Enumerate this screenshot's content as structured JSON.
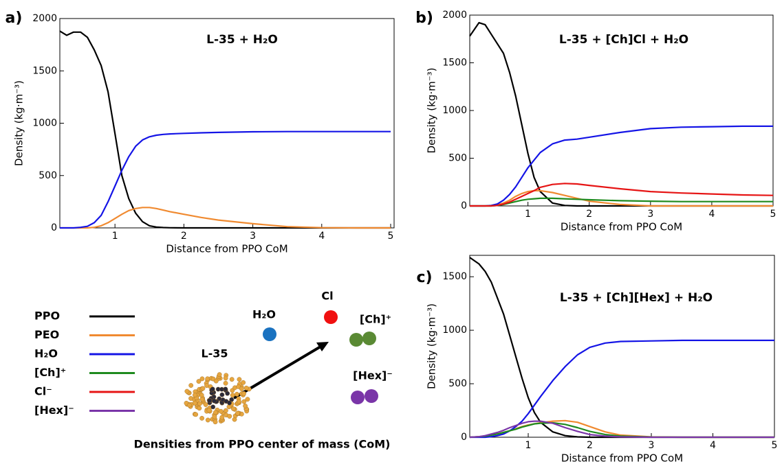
{
  "chart_data": [
    {
      "type": "line",
      "panel_label": "a)",
      "title": "L-35 + H₂O",
      "xlabel": "Distance from PPO CoM",
      "ylabel": "Density (kg·m⁻³)",
      "xlim": [
        0.2,
        5.05
      ],
      "xticks": [
        1,
        2,
        3,
        4,
        5
      ],
      "ylim": [
        0,
        2000
      ],
      "yticks": [
        0,
        500,
        1000,
        1500,
        2000
      ],
      "x": [
        0.2,
        0.3,
        0.4,
        0.5,
        0.6,
        0.7,
        0.8,
        0.9,
        1.0,
        1.1,
        1.2,
        1.3,
        1.4,
        1.5,
        1.6,
        1.7,
        1.8,
        2.0,
        2.25,
        2.5,
        3,
        3.5,
        4,
        4.5,
        5
      ],
      "series": [
        {
          "color": "#000000",
          "values": [
            1880,
            1840,
            1870,
            1870,
            1820,
            1700,
            1550,
            1300,
            900,
            500,
            280,
            140,
            60,
            20,
            8,
            3,
            1,
            0,
            0,
            0,
            0,
            0,
            0,
            0,
            0
          ]
        },
        {
          "color": "#f08a30",
          "values": [
            0,
            0,
            0,
            0,
            0,
            5,
            20,
            50,
            90,
            130,
            165,
            185,
            195,
            195,
            185,
            170,
            155,
            130,
            100,
            75,
            40,
            12,
            2,
            0,
            0
          ]
        },
        {
          "color": "#1414e6",
          "values": [
            0,
            0,
            0,
            5,
            15,
            50,
            120,
            250,
            400,
            550,
            680,
            780,
            840,
            870,
            885,
            893,
            898,
            903,
            908,
            912,
            918,
            920,
            920,
            920,
            920
          ]
        }
      ]
    },
    {
      "type": "line",
      "panel_label": "b)",
      "title": "L-35 + [Ch]Cl + H₂O",
      "xlabel": "Distance from PPO CoM",
      "ylabel": "Density (kg·m⁻³)",
      "xlim": [
        0.05,
        5
      ],
      "xticks": [
        1,
        2,
        3,
        4,
        5
      ],
      "ylim": [
        0,
        2000
      ],
      "yticks": [
        0,
        500,
        1000,
        1500,
        2000
      ],
      "x": [
        0.05,
        0.2,
        0.3,
        0.4,
        0.5,
        0.6,
        0.7,
        0.8,
        0.9,
        1.0,
        1.1,
        1.2,
        1.4,
        1.6,
        1.8,
        2.0,
        2.5,
        3,
        3.5,
        4,
        4.5,
        5
      ],
      "series": [
        {
          "color": "#000000",
          "values": [
            1780,
            1920,
            1900,
            1800,
            1700,
            1600,
            1400,
            1150,
            850,
            550,
            300,
            150,
            30,
            5,
            0,
            0,
            0,
            0,
            0,
            0,
            0,
            0
          ]
        },
        {
          "color": "#f08a30",
          "values": [
            0,
            0,
            0,
            0,
            10,
            30,
            60,
            100,
            130,
            150,
            160,
            160,
            140,
            110,
            80,
            50,
            15,
            0,
            0,
            0,
            0,
            0
          ]
        },
        {
          "color": "#1414e6",
          "values": [
            0,
            0,
            0,
            5,
            20,
            60,
            120,
            200,
            300,
            400,
            480,
            560,
            650,
            690,
            700,
            720,
            770,
            810,
            825,
            830,
            835,
            835
          ]
        },
        {
          "color": "#1e8a1e",
          "values": [
            0,
            0,
            0,
            0,
            5,
            15,
            30,
            45,
            60,
            70,
            75,
            80,
            80,
            75,
            70,
            65,
            55,
            50,
            45,
            45,
            45,
            45
          ]
        },
        {
          "color": "#e61414",
          "values": [
            0,
            0,
            0,
            0,
            5,
            20,
            40,
            70,
            100,
            130,
            160,
            195,
            225,
            235,
            230,
            215,
            180,
            150,
            135,
            125,
            115,
            110
          ]
        }
      ]
    },
    {
      "type": "line",
      "panel_label": "c)",
      "title": "L-35 + [Ch][Hex] + H₂O",
      "xlabel": "Distance from PPO CoM",
      "ylabel": "Density (kg·m⁻³)",
      "xlim": [
        0.05,
        5
      ],
      "xticks": [
        1,
        2,
        3,
        4,
        5
      ],
      "ylim": [
        0,
        1700
      ],
      "yticks": [
        0,
        500,
        1000,
        1500
      ],
      "x": [
        0.05,
        0.2,
        0.3,
        0.4,
        0.5,
        0.6,
        0.7,
        0.8,
        0.9,
        1.0,
        1.1,
        1.2,
        1.4,
        1.6,
        1.8,
        2.0,
        2.25,
        2.5,
        3,
        3.5,
        4,
        4.5,
        5
      ],
      "series": [
        {
          "color": "#000000",
          "values": [
            1680,
            1620,
            1550,
            1450,
            1300,
            1150,
            950,
            750,
            550,
            370,
            230,
            140,
            50,
            15,
            3,
            0,
            0,
            0,
            0,
            0,
            0,
            0,
            0
          ]
        },
        {
          "color": "#f08a30",
          "values": [
            0,
            5,
            10,
            20,
            30,
            45,
            60,
            80,
            100,
            115,
            125,
            135,
            150,
            155,
            140,
            100,
            50,
            20,
            3,
            0,
            0,
            0,
            0
          ]
        },
        {
          "color": "#1414e6",
          "values": [
            0,
            0,
            0,
            5,
            15,
            30,
            60,
            100,
            150,
            220,
            300,
            380,
            530,
            660,
            770,
            840,
            880,
            895,
            900,
            905,
            905,
            905,
            905
          ]
        },
        {
          "color": "#1e8a1e",
          "values": [
            0,
            5,
            10,
            20,
            30,
            45,
            60,
            75,
            95,
            110,
            125,
            130,
            135,
            120,
            90,
            55,
            25,
            10,
            2,
            0,
            0,
            0,
            0
          ]
        },
        {
          "color": "#7a35a8",
          "values": [
            0,
            5,
            15,
            30,
            45,
            65,
            90,
            110,
            130,
            145,
            150,
            150,
            130,
            90,
            55,
            25,
            10,
            3,
            0,
            0,
            0,
            0,
            0
          ]
        }
      ]
    }
  ],
  "legend": [
    {
      "name": "PPO",
      "color": "#000000"
    },
    {
      "name": "PEO",
      "color": "#f08a30"
    },
    {
      "name": "H₂O",
      "color": "#1414e6"
    },
    {
      "name": "[Ch]⁺",
      "color": "#1e8a1e"
    },
    {
      "name": "Cl⁻",
      "color": "#e61414"
    },
    {
      "name": "[Hex]⁻",
      "color": "#7a35a8"
    }
  ],
  "schematic": {
    "molecule": "L-35",
    "water": "H₂O",
    "chloride": "Cl",
    "cholinium": "[Ch]⁺",
    "hexanoate": "[Hex]⁻",
    "caption": "Densities from PPO center of mass (CoM)"
  }
}
